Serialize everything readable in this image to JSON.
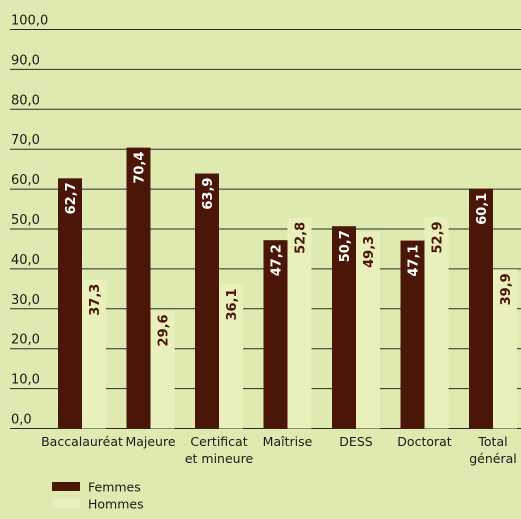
{
  "chart_data": {
    "type": "bar",
    "title": "",
    "xlabel": "",
    "ylabel": "",
    "ylim": [
      0,
      100
    ],
    "yticks": [
      "0,0",
      "10,0",
      "20,0",
      "30,0",
      "40,0",
      "50,0",
      "60,0",
      "70,0",
      "80,0",
      "90,0",
      "100,0"
    ],
    "categories": [
      [
        "Baccalauréat"
      ],
      [
        "Majeure"
      ],
      [
        "Certificat",
        "et mineure"
      ],
      [
        "Maîtrise"
      ],
      [
        "DESS"
      ],
      [
        "Doctorat"
      ],
      [
        "Total",
        "général"
      ]
    ],
    "series": [
      {
        "name": "Femmes",
        "color": "#4a1608",
        "label_color": "#ffffff",
        "values": [
          62.7,
          70.4,
          63.9,
          47.2,
          50.7,
          47.1,
          60.1
        ],
        "labels": [
          "62,7",
          "70,4",
          "63,9",
          "47,2",
          "50,7",
          "47,1",
          "60,1"
        ]
      },
      {
        "name": "Hommes",
        "color": "#eaf0bc",
        "label_color": "#4a1608",
        "values": [
          37.3,
          29.6,
          36.1,
          52.8,
          49.3,
          52.9,
          39.9
        ],
        "labels": [
          "37,3",
          "29,6",
          "36,1",
          "52,8",
          "49,3",
          "52,9",
          "39,9"
        ]
      }
    ],
    "grid": true,
    "legend_position": "bottom-left"
  }
}
